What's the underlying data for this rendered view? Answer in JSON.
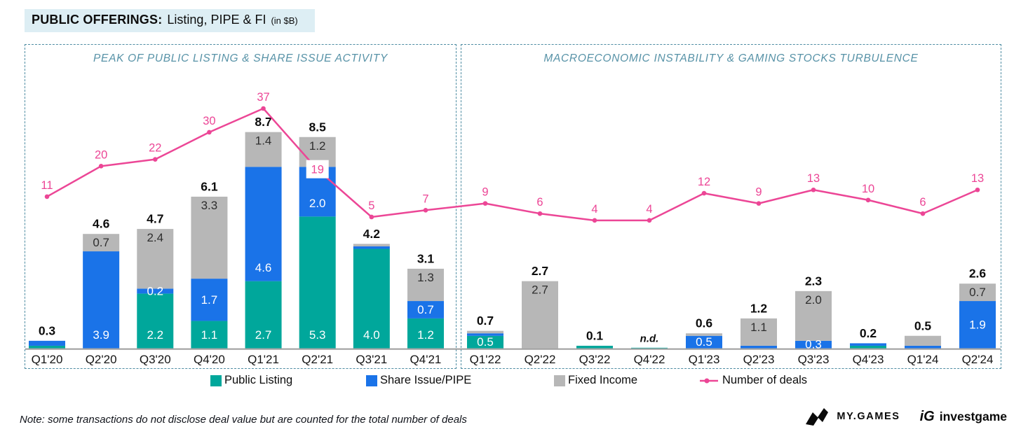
{
  "title": {
    "prefix": "PUBLIC OFFERINGS:",
    "main": "Listing, PIPE & FI",
    "unit": "(in $B)"
  },
  "panels": [
    {
      "title": "PEAK OF PUBLIC LISTING & SHARE ISSUE ACTIVITY"
    },
    {
      "title": "MACROECONOMIC INSTABILITY & GAMING STOCKS TURBULENCE"
    }
  ],
  "legend": [
    {
      "label": "Public Listing",
      "series": "public_listing"
    },
    {
      "label": "Share Issue/PIPE",
      "series": "share_issue_pipe"
    },
    {
      "label": "Fixed Income",
      "series": "fixed_income"
    },
    {
      "label": "Number of deals",
      "series": "deals"
    }
  ],
  "note": "Note: some transactions do not disclose deal value but are counted for the total number of deals",
  "footer_logos": {
    "mygames": "MY.GAMES",
    "ig_mark": "iG",
    "investgame": "investgame"
  },
  "colors": {
    "public_listing": "#00a79b",
    "share_issue_pipe": "#1a73e8",
    "fixed_income": "#b7b7b7",
    "deals": "#ec4696",
    "panel_accent": "#5792a7",
    "title_bg": "#ddeef4",
    "axis": "#9b9b9b"
  },
  "chart_data": {
    "type": "bar",
    "subtype": "stacked-bar-with-line",
    "unit": "$B",
    "series_names": [
      "Public Listing",
      "Share Issue/PIPE",
      "Fixed Income"
    ],
    "line_series_name": "Number of deals",
    "quarters": [
      {
        "q": "Q1'20",
        "panel": 0,
        "deals": 11,
        "total": "0.3",
        "segments": [
          {
            "s": "public_listing",
            "v": 0.1
          },
          {
            "s": "share_issue_pipe",
            "v": 0.2
          }
        ]
      },
      {
        "q": "Q2'20",
        "panel": 0,
        "deals": 20,
        "total": "4.6",
        "segments": [
          {
            "s": "share_issue_pipe",
            "v": 3.9,
            "label": "3.9"
          },
          {
            "s": "fixed_income",
            "v": 0.7,
            "label": "0.7"
          }
        ]
      },
      {
        "q": "Q3'20",
        "panel": 0,
        "deals": 22,
        "total": "4.7",
        "segments": [
          {
            "s": "public_listing",
            "v": 2.2,
            "label": "2.2"
          },
          {
            "s": "share_issue_pipe",
            "v": 0.2,
            "label": "0.2"
          },
          {
            "s": "fixed_income",
            "v": 2.4,
            "label": "2.4"
          }
        ]
      },
      {
        "q": "Q4'20",
        "panel": 0,
        "deals": 30,
        "total": "6.1",
        "segments": [
          {
            "s": "public_listing",
            "v": 1.1,
            "label": "1.1"
          },
          {
            "s": "share_issue_pipe",
            "v": 1.7,
            "label": "1.7"
          },
          {
            "s": "fixed_income",
            "v": 3.3,
            "label": "3.3"
          }
        ]
      },
      {
        "q": "Q1'21",
        "panel": 0,
        "deals": 37,
        "total": "8.7",
        "segments": [
          {
            "s": "public_listing",
            "v": 2.7,
            "label": "2.7"
          },
          {
            "s": "share_issue_pipe",
            "v": 4.6,
            "label": "4.6"
          },
          {
            "s": "fixed_income",
            "v": 1.4,
            "label": "1.4"
          }
        ]
      },
      {
        "q": "Q2'21",
        "panel": 0,
        "deals": 19,
        "deals_boxed": true,
        "total": "8.5",
        "segments": [
          {
            "s": "public_listing",
            "v": 5.3,
            "label": "5.3"
          },
          {
            "s": "share_issue_pipe",
            "v": 2.0,
            "label": "2.0"
          },
          {
            "s": "fixed_income",
            "v": 1.2,
            "label": "1.2"
          }
        ]
      },
      {
        "q": "Q3'21",
        "panel": 0,
        "deals": 5,
        "total": "4.2",
        "segments": [
          {
            "s": "public_listing",
            "v": 4.0,
            "label": "4.0"
          },
          {
            "s": "share_issue_pipe",
            "v": 0.1
          },
          {
            "s": "fixed_income",
            "v": 0.1
          }
        ]
      },
      {
        "q": "Q4'21",
        "panel": 0,
        "deals": 7,
        "total": "3.1",
        "segments": [
          {
            "s": "public_listing",
            "v": 1.2,
            "label": "1.2"
          },
          {
            "s": "share_issue_pipe",
            "v": 0.7,
            "label": "0.7"
          },
          {
            "s": "fixed_income",
            "v": 1.3,
            "label": "1.3"
          }
        ]
      },
      {
        "q": "Q1'22",
        "panel": 1,
        "deals": 9,
        "total": "0.7",
        "segments": [
          {
            "s": "public_listing",
            "v": 0.5,
            "label": "0.5"
          },
          {
            "s": "share_issue_pipe",
            "v": 0.1
          },
          {
            "s": "fixed_income",
            "v": 0.1
          }
        ]
      },
      {
        "q": "Q2'22",
        "panel": 1,
        "deals": 6,
        "total": "2.7",
        "segments": [
          {
            "s": "fixed_income",
            "v": 2.7,
            "label": "2.7"
          }
        ]
      },
      {
        "q": "Q3'22",
        "panel": 1,
        "deals": 4,
        "total": "0.1",
        "segments": [
          {
            "s": "public_listing",
            "v": 0.1
          }
        ]
      },
      {
        "q": "Q4'22",
        "panel": 1,
        "deals": 4,
        "total": "n.d.",
        "nd": true,
        "segments": [
          {
            "s": "public_listing",
            "v": 0.02
          }
        ]
      },
      {
        "q": "Q1'23",
        "panel": 1,
        "deals": 12,
        "total": "0.6",
        "segments": [
          {
            "s": "share_issue_pipe",
            "v": 0.5,
            "label": "0.5"
          },
          {
            "s": "fixed_income",
            "v": 0.1
          }
        ]
      },
      {
        "q": "Q2'23",
        "panel": 1,
        "deals": 9,
        "total": "1.2",
        "segments": [
          {
            "s": "share_issue_pipe",
            "v": 0.1
          },
          {
            "s": "fixed_income",
            "v": 1.1,
            "label": "1.1"
          }
        ]
      },
      {
        "q": "Q3'23",
        "panel": 1,
        "deals": 13,
        "total": "2.3",
        "segments": [
          {
            "s": "share_issue_pipe",
            "v": 0.3,
            "label": "0.3"
          },
          {
            "s": "fixed_income",
            "v": 2.0,
            "label": "2.0"
          }
        ]
      },
      {
        "q": "Q4'23",
        "panel": 1,
        "deals": 10,
        "total": "0.2",
        "segments": [
          {
            "s": "public_listing",
            "v": 0.1
          },
          {
            "s": "share_issue_pipe",
            "v": 0.1
          }
        ]
      },
      {
        "q": "Q1'24",
        "panel": 1,
        "deals": 6,
        "total": "0.5",
        "segments": [
          {
            "s": "share_issue_pipe",
            "v": 0.1
          },
          {
            "s": "fixed_income",
            "v": 0.4
          }
        ]
      },
      {
        "q": "Q2'24",
        "panel": 1,
        "deals": 13,
        "total": "2.6",
        "segments": [
          {
            "s": "share_issue_pipe",
            "v": 1.9,
            "label": "1.9"
          },
          {
            "s": "fixed_income",
            "v": 0.7,
            "label": "0.7"
          }
        ]
      }
    ]
  }
}
